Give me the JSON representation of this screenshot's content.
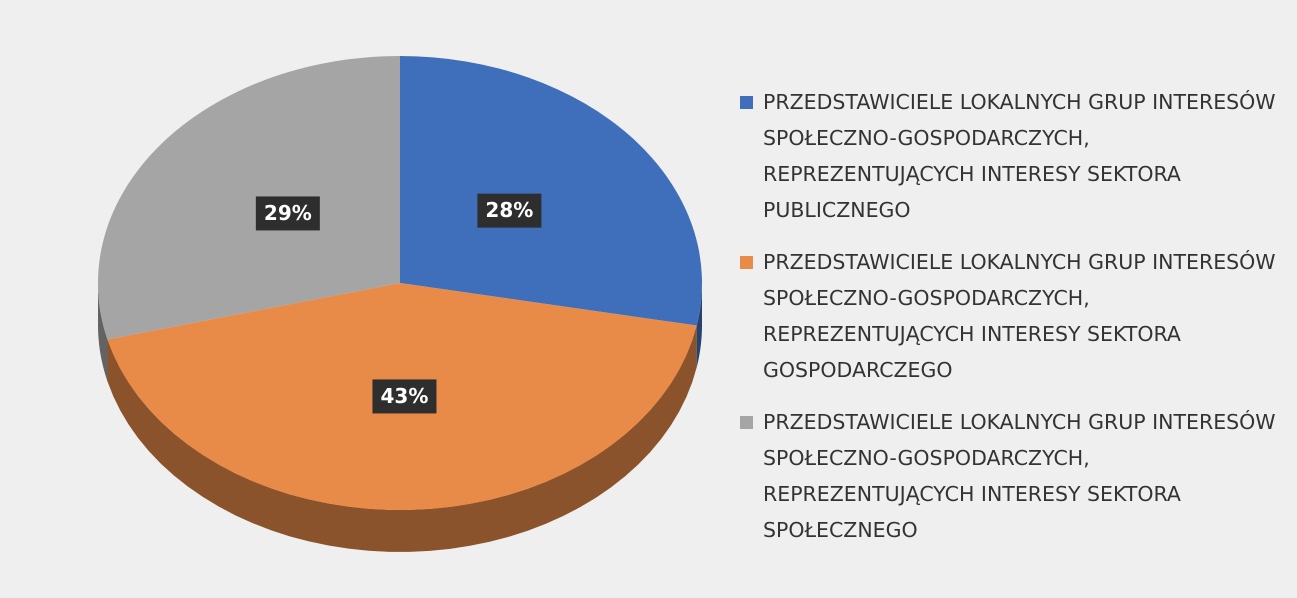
{
  "chart_data": {
    "type": "pie",
    "categories": [
      "PRZEDSTAWICIELE LOKALNYCH GRUP INTERESÓW SPOŁECZNO-GOSPODARCZYCH, REPREZENTUJĄCYCH INTERESY SEKTORA PUBLICZNEGO",
      "PRZEDSTAWICIELE LOKALNYCH GRUP INTERESÓW SPOŁECZNO-GOSPODARCZYCH, REPREZENTUJĄCYCH INTERESY SEKTORA GOSPODARCZEGO",
      "PRZEDSTAWICIELE LOKALNYCH GRUP INTERESÓW SPOŁECZNO-GOSPODARCZYCH, REPREZENTUJĄCYCH INTERESY SEKTORA SPOŁECZNEGO"
    ],
    "values": [
      28,
      43,
      29
    ],
    "value_labels": [
      "28%",
      "43%",
      "29%"
    ],
    "colors": [
      "#3f6fba",
      "#e88a48",
      "#a5a5a5"
    ],
    "legend": "right"
  }
}
